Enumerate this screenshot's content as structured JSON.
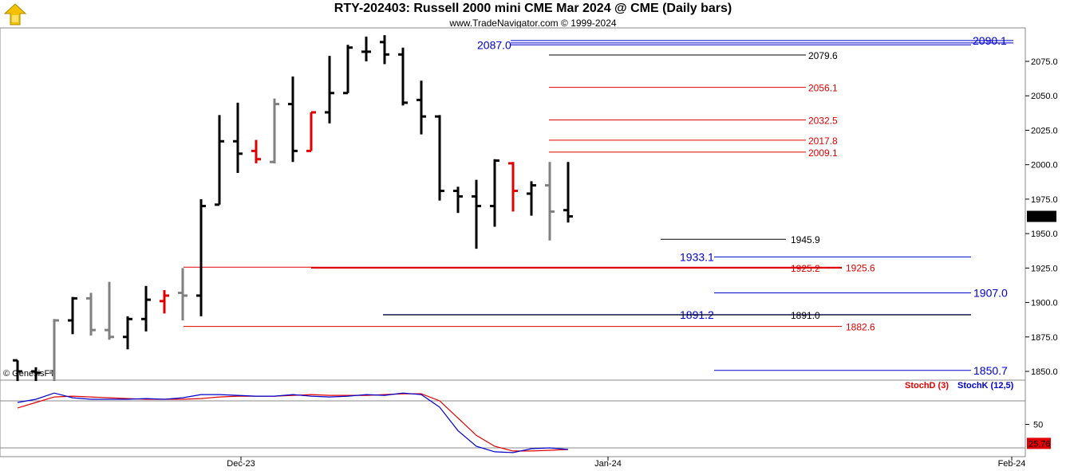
{
  "title": "RTY-202403:  Russell 2000 mini CME Mar 2024 @ CME  (Daily bars)",
  "subtitle": "www.TradeNavigator.com © 1999-2024",
  "copyright": "© GenesisFT",
  "colors": {
    "up_bar": "#000000",
    "reversal_bar": "#e00000",
    "neutral_bar": "#808080",
    "stoch_d": "#e00000",
    "stoch_k": "#0000cc",
    "blue_level": "#0000cc",
    "red_level": "#e00000",
    "black_level": "#000000"
  },
  "chart_data": [
    {
      "type": "ohlc",
      "name": "price",
      "ylim": [
        1840,
        2100
      ],
      "y_ticks": [
        1850.0,
        1875.0,
        1900.0,
        1925.0,
        1950.0,
        1975.0,
        2000.0,
        2025.0,
        2050.0,
        2075.0
      ],
      "x_ticks": [
        "Dec-23",
        "Jan-24",
        "Feb-24"
      ],
      "last_price": "1962.5",
      "bars": [
        {
          "o": 1858,
          "h": 1858,
          "l": 1843,
          "c": 1850,
          "color": "black"
        },
        {
          "o": 1850,
          "h": 1853,
          "l": 1843,
          "c": 1849,
          "color": "black"
        },
        {
          "o": 1849,
          "h": 1888,
          "l": 1843,
          "c": 1887,
          "color": "gray"
        },
        {
          "o": 1887,
          "h": 1904,
          "l": 1877,
          "c": 1903,
          "color": "black"
        },
        {
          "o": 1903,
          "h": 1907,
          "l": 1876,
          "c": 1880,
          "color": "gray"
        },
        {
          "o": 1880,
          "h": 1915,
          "l": 1873,
          "c": 1875,
          "color": "gray"
        },
        {
          "o": 1875,
          "h": 1890,
          "l": 1866,
          "c": 1888,
          "color": "black"
        },
        {
          "o": 1888,
          "h": 1912,
          "l": 1879,
          "c": 1902,
          "color": "black"
        },
        {
          "o": 1901,
          "h": 1909,
          "l": 1892,
          "c": 1905,
          "color": "red"
        },
        {
          "o": 1907,
          "h": 1925,
          "l": 1887,
          "c": 1905,
          "color": "gray"
        },
        {
          "o": 1905,
          "h": 1975,
          "l": 1890,
          "c": 1970,
          "color": "black"
        },
        {
          "o": 1971,
          "h": 2036,
          "l": 1971,
          "c": 2017,
          "color": "black"
        },
        {
          "o": 2017,
          "h": 2045,
          "l": 1994,
          "c": 2008,
          "color": "black"
        },
        {
          "o": 2010,
          "h": 2018,
          "l": 2001,
          "c": 2004,
          "color": "red"
        },
        {
          "o": 2002,
          "h": 2048,
          "l": 2001,
          "c": 2044,
          "color": "gray"
        },
        {
          "o": 2044,
          "h": 2064,
          "l": 2002,
          "c": 2010,
          "color": "black"
        },
        {
          "o": 2010,
          "h": 2038,
          "l": 2010,
          "c": 2038,
          "color": "red"
        },
        {
          "o": 2038,
          "h": 2079,
          "l": 2030,
          "c": 2052,
          "color": "black"
        },
        {
          "o": 2052,
          "h": 2087,
          "l": 2052,
          "c": 2085,
          "color": "black"
        },
        {
          "o": 2082,
          "h": 2093,
          "l": 2075,
          "c": 2082,
          "color": "black"
        },
        {
          "o": 2089,
          "h": 2094,
          "l": 2073,
          "c": 2080,
          "color": "black"
        },
        {
          "o": 2080,
          "h": 2085,
          "l": 2043,
          "c": 2045,
          "color": "black"
        },
        {
          "o": 2047,
          "h": 2061,
          "l": 2022,
          "c": 2035,
          "color": "black"
        },
        {
          "o": 2035,
          "h": 2036,
          "l": 1974,
          "c": 1981,
          "color": "black"
        },
        {
          "o": 1981,
          "h": 1984,
          "l": 1965,
          "c": 1977,
          "color": "black"
        },
        {
          "o": 1977,
          "h": 1989,
          "l": 1939,
          "c": 1970,
          "color": "black"
        },
        {
          "o": 1970,
          "h": 2004,
          "l": 1955,
          "c": 2003,
          "color": "black"
        },
        {
          "o": 2001,
          "h": 2002,
          "l": 1966,
          "c": 1981,
          "color": "red"
        },
        {
          "o": 1979,
          "h": 1988,
          "l": 1963,
          "c": 1985,
          "color": "black"
        },
        {
          "o": 1985,
          "h": 2002,
          "l": 1945,
          "c": 1966,
          "color": "gray"
        },
        {
          "o": 1967,
          "h": 2002,
          "l": 1958,
          "c": 1962.5,
          "color": "black"
        }
      ],
      "levels": [
        {
          "value": 2090.1,
          "label": "2090.1",
          "color": "blue",
          "style": "double"
        },
        {
          "value": 2087.0,
          "label": "2087.0",
          "color": "blue",
          "style": "single"
        },
        {
          "value": 2079.6,
          "label": "2079.6",
          "color": "black",
          "style": "single"
        },
        {
          "value": 2056.1,
          "label": "2056.1",
          "color": "red",
          "style": "single"
        },
        {
          "value": 2032.5,
          "label": "2032.5",
          "color": "red",
          "style": "single"
        },
        {
          "value": 2017.8,
          "label": "2017.8",
          "color": "red",
          "style": "single"
        },
        {
          "value": 2009.1,
          "label": "2009.1",
          "color": "red",
          "style": "single"
        },
        {
          "value": 1945.9,
          "label": "1945.9",
          "color": "black",
          "style": "single"
        },
        {
          "value": 1933.1,
          "label": "1933.1",
          "color": "blue",
          "style": "single"
        },
        {
          "value": 1925.6,
          "label": "1925.6",
          "color": "red",
          "style": "single"
        },
        {
          "value": 1925.2,
          "label": "1925.2",
          "color": "red",
          "style": "single"
        },
        {
          "value": 1907.0,
          "label": "1907.0",
          "color": "blue",
          "style": "single"
        },
        {
          "value": 1891.2,
          "label": "1891.2",
          "color": "blue",
          "style": "single"
        },
        {
          "value": 1891.0,
          "label": "1891.0",
          "color": "black",
          "style": "single"
        },
        {
          "value": 1882.6,
          "label": "1882.6",
          "color": "red",
          "style": "single"
        },
        {
          "value": 1850.7,
          "label": "1850.7",
          "color": "blue",
          "style": "single"
        }
      ]
    },
    {
      "type": "line",
      "name": "stochastic",
      "ylim": [
        0,
        100
      ],
      "y_ticks": [
        50
      ],
      "reference_lines": [
        80,
        20
      ],
      "last_value": "25.76",
      "series": [
        {
          "name": "StochD (3)",
          "color": "red",
          "values": [
            71,
            78,
            85,
            86,
            85,
            84,
            83,
            82,
            82,
            82,
            83,
            85,
            86,
            86,
            86,
            87,
            88,
            87,
            87,
            87,
            88,
            89,
            89,
            80,
            58,
            36,
            22,
            16,
            16,
            17,
            18
          ]
        },
        {
          "name": "StochK (12,5)",
          "color": "blue",
          "values": [
            78,
            82,
            90,
            84,
            82,
            82,
            82,
            83,
            82,
            84,
            88,
            88,
            87,
            86,
            86,
            88,
            86,
            85,
            86,
            88,
            87,
            90,
            88,
            72,
            42,
            22,
            15,
            14,
            19,
            20,
            18
          ]
        }
      ]
    }
  ]
}
